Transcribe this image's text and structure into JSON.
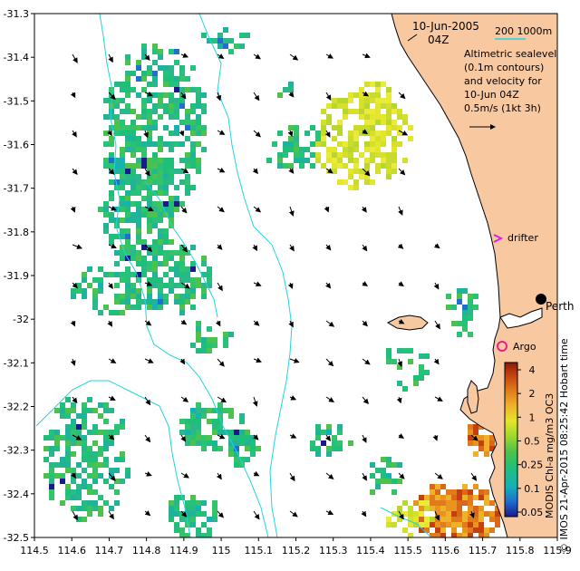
{
  "map": {
    "date_line1": "10-Jun-2005",
    "date_line2": "04Z",
    "isobath_label": "200 1000m",
    "info_lines": [
      "Altimetric sealevel",
      "(0.1m contours)",
      "and velocity for",
      "10-Jun 04Z",
      "0.5m/s (1kt 3h)"
    ],
    "place_labels": {
      "perth": "Perth",
      "drifter": "drifter",
      "argo": "Argo"
    },
    "credit_left": "MODIS Chl-a mg/m3 OC3",
    "credit_right": "© IMOS 21-Apr-2015 08:25:42 Hobart time",
    "x_ticks": [
      "114.5",
      "114.6",
      "114.7",
      "114.8",
      "114.9",
      "115",
      "115.1",
      "115.2",
      "115.3",
      "115.4",
      "115.5",
      "115.6",
      "115.7",
      "115.8",
      "115.9"
    ],
    "y_ticks": [
      "-31.3",
      "-31.4",
      "-31.5",
      "-31.6",
      "-31.7",
      "-31.8",
      "-31.9",
      "-32",
      "-32.1",
      "-32.2",
      "-32.3",
      "-32.4",
      "-32.5"
    ],
    "colorbar": {
      "labels": [
        "4",
        "2",
        "1",
        "0.5",
        "0.25",
        "0.1",
        "0.05"
      ],
      "scale": "log",
      "stops": [
        "#1a1a8c",
        "#1f6fd1",
        "#14b3b3",
        "#1fbf7a",
        "#4cc24c",
        "#9ed82a",
        "#e3e62a",
        "#f0b12a",
        "#e07a1a",
        "#c4400f",
        "#8c1a0a"
      ]
    },
    "colors": {
      "land": "#f8c8a0",
      "isobath": "#22d4e0",
      "argo": "#e8208c",
      "drifter": "#e020e0"
    }
  }
}
